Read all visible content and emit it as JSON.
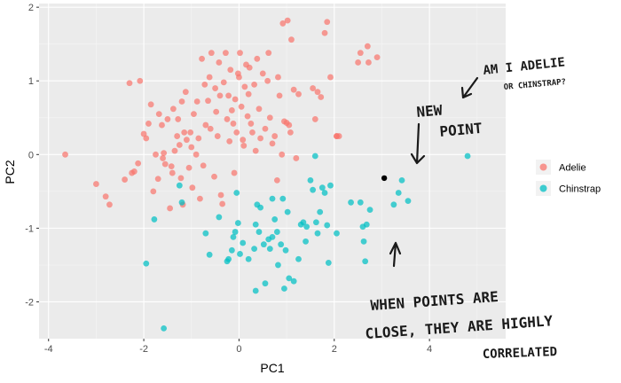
{
  "chart_data": {
    "type": "scatter",
    "xlabel": "PC1",
    "ylabel": "PC2",
    "xlim": [
      -4.2,
      5.6
    ],
    "ylim": [
      -2.5,
      2.05
    ],
    "x_ticks": [
      -4,
      -2,
      0,
      2,
      4
    ],
    "y_ticks": [
      -2,
      -1,
      0,
      1,
      2
    ],
    "grid": true,
    "legend_position": "right",
    "series": [
      {
        "name": "Adelie",
        "color": "#F8766D",
        "points": [
          [
            -3.65,
            0.0
          ],
          [
            -3.0,
            -0.4
          ],
          [
            -2.8,
            -0.57
          ],
          [
            -2.72,
            -0.68
          ],
          [
            -2.4,
            -0.34
          ],
          [
            -2.3,
            0.97
          ],
          [
            -2.25,
            -0.25
          ],
          [
            -2.2,
            -0.23
          ],
          [
            -2.12,
            -0.12
          ],
          [
            -2.08,
            1.0
          ],
          [
            -2.0,
            0.28
          ],
          [
            -1.95,
            0.22
          ],
          [
            -1.9,
            0.42
          ],
          [
            -1.85,
            0.68
          ],
          [
            -1.8,
            -0.5
          ],
          [
            -1.75,
            0.0
          ],
          [
            -1.7,
            -0.33
          ],
          [
            -1.68,
            0.55
          ],
          [
            -1.62,
            0.4
          ],
          [
            -1.6,
            -0.05
          ],
          [
            -1.58,
            0.02
          ],
          [
            -1.55,
            -0.13
          ],
          [
            -1.5,
            0.48
          ],
          [
            -1.45,
            -0.73
          ],
          [
            -1.42,
            -0.16
          ],
          [
            -1.4,
            -0.25
          ],
          [
            -1.38,
            0.62
          ],
          [
            -1.35,
            0.05
          ],
          [
            -1.3,
            0.25
          ],
          [
            -1.28,
            0.48
          ],
          [
            -1.25,
            0.13
          ],
          [
            -1.22,
            -0.32
          ],
          [
            -1.2,
            0.72
          ],
          [
            -1.18,
            -0.68
          ],
          [
            -1.15,
            0.3
          ],
          [
            -1.12,
            0.85
          ],
          [
            -1.1,
            0.2
          ],
          [
            -1.05,
            -0.18
          ],
          [
            -1.02,
            0.3
          ],
          [
            -1.0,
            0.1
          ],
          [
            -0.98,
            -0.45
          ],
          [
            -0.95,
            0.55
          ],
          [
            -0.9,
            0.0
          ],
          [
            -0.88,
            0.72
          ],
          [
            -0.85,
            0.22
          ],
          [
            -0.82,
            -0.6
          ],
          [
            -0.78,
            1.3
          ],
          [
            -0.75,
            -0.15
          ],
          [
            -0.72,
            0.95
          ],
          [
            -0.7,
            0.4
          ],
          [
            -0.65,
            0.73
          ],
          [
            -0.62,
            1.05
          ],
          [
            -0.6,
            0.35
          ],
          [
            -0.58,
            1.38
          ],
          [
            -0.52,
            -0.3
          ],
          [
            -0.5,
            0.9
          ],
          [
            -0.48,
            0.58
          ],
          [
            -0.45,
            0.25
          ],
          [
            -0.42,
            1.25
          ],
          [
            -0.4,
            0.8
          ],
          [
            -0.38,
            -0.55
          ],
          [
            -0.35,
            -0.67
          ],
          [
            -0.32,
            0.98
          ],
          [
            -0.28,
            1.38
          ],
          [
            -0.25,
            0.48
          ],
          [
            -0.22,
            0.8
          ],
          [
            -0.2,
            0.18
          ],
          [
            -0.18,
            1.15
          ],
          [
            -0.15,
            0.6
          ],
          [
            -0.12,
            0.42
          ],
          [
            -0.1,
            -0.25
          ],
          [
            -0.08,
            0.75
          ],
          [
            -0.05,
            0.3
          ],
          [
            -0.02,
            1.1
          ],
          [
            0.0,
            1.05
          ],
          [
            0.02,
            1.38
          ],
          [
            0.05,
            0.65
          ],
          [
            0.08,
            0.2
          ],
          [
            0.1,
            0.12
          ],
          [
            0.12,
            0.92
          ],
          [
            0.15,
            1.22
          ],
          [
            0.18,
            0.52
          ],
          [
            0.2,
            0.82
          ],
          [
            0.22,
            1.18
          ],
          [
            0.25,
            0.42
          ],
          [
            0.28,
            0.3
          ],
          [
            0.32,
            0.95
          ],
          [
            0.35,
            0.05
          ],
          [
            0.38,
            1.3
          ],
          [
            0.42,
            0.62
          ],
          [
            0.45,
            0.22
          ],
          [
            0.5,
            1.1
          ],
          [
            0.55,
            0.35
          ],
          [
            0.6,
            1.0
          ],
          [
            0.62,
            1.38
          ],
          [
            0.65,
            0.5
          ],
          [
            0.7,
            0.15
          ],
          [
            0.75,
            0.25
          ],
          [
            0.8,
            -0.35
          ],
          [
            0.82,
            1.05
          ],
          [
            0.85,
            0.8
          ],
          [
            0.9,
            0.0
          ],
          [
            0.92,
            1.78
          ],
          [
            0.95,
            0.45
          ],
          [
            1.0,
            0.43
          ],
          [
            1.02,
            1.82
          ],
          [
            1.05,
            0.4
          ],
          [
            1.08,
            0.3
          ],
          [
            1.1,
            1.56
          ],
          [
            1.15,
            0.88
          ],
          [
            1.2,
            -0.05
          ],
          [
            1.25,
            0.82
          ],
          [
            1.55,
            0.9
          ],
          [
            1.6,
            0.48
          ],
          [
            1.65,
            0.85
          ],
          [
            1.72,
            0.78
          ],
          [
            1.8,
            1.65
          ],
          [
            1.85,
            1.8
          ],
          [
            1.92,
            1.05
          ],
          [
            2.05,
            0.25
          ],
          [
            2.1,
            0.25
          ],
          [
            2.5,
            1.25
          ],
          [
            2.55,
            1.38
          ],
          [
            2.7,
            1.47
          ],
          [
            2.72,
            1.25
          ],
          [
            2.9,
            1.32
          ],
          [
            2.05,
            0.25
          ]
        ]
      },
      {
        "name": "Chinstrap",
        "color": "#00BFC4",
        "points": [
          [
            -1.95,
            -1.48
          ],
          [
            -1.78,
            -0.88
          ],
          [
            -1.58,
            -2.36
          ],
          [
            -1.25,
            -0.42
          ],
          [
            -1.2,
            -0.65
          ],
          [
            -0.7,
            -1.07
          ],
          [
            -0.62,
            -1.36
          ],
          [
            -0.42,
            -0.85
          ],
          [
            -0.25,
            -1.45
          ],
          [
            -0.22,
            -1.42
          ],
          [
            -0.15,
            -1.3
          ],
          [
            -0.12,
            -1.12
          ],
          [
            -0.08,
            -1.05
          ],
          [
            -0.05,
            -0.52
          ],
          [
            -0.02,
            -0.93
          ],
          [
            0.02,
            -1.35
          ],
          [
            0.08,
            -1.2
          ],
          [
            0.2,
            -1.42
          ],
          [
            0.32,
            -1.28
          ],
          [
            0.35,
            -1.85
          ],
          [
            0.38,
            -0.68
          ],
          [
            0.42,
            -1.05
          ],
          [
            0.45,
            -0.72
          ],
          [
            0.52,
            -1.22
          ],
          [
            0.55,
            -1.75
          ],
          [
            0.62,
            -1.15
          ],
          [
            0.65,
            -1.28
          ],
          [
            0.7,
            -0.6
          ],
          [
            0.75,
            -0.88
          ],
          [
            0.8,
            -1.05
          ],
          [
            0.82,
            -1.5
          ],
          [
            0.88,
            -1.22
          ],
          [
            0.92,
            -0.6
          ],
          [
            0.95,
            -1.82
          ],
          [
            0.98,
            -1.3
          ],
          [
            1.02,
            -0.78
          ],
          [
            1.05,
            -1.68
          ],
          [
            1.15,
            -1.72
          ],
          [
            1.25,
            -1.42
          ],
          [
            1.3,
            -0.95
          ],
          [
            1.35,
            -0.92
          ],
          [
            1.4,
            -1.18
          ],
          [
            1.42,
            -0.98
          ],
          [
            1.5,
            -0.35
          ],
          [
            1.55,
            -0.48
          ],
          [
            1.6,
            -0.02
          ],
          [
            1.62,
            -0.92
          ],
          [
            1.65,
            -1.07
          ],
          [
            1.7,
            -0.78
          ],
          [
            1.75,
            -0.45
          ],
          [
            1.8,
            -0.52
          ],
          [
            1.85,
            -0.96
          ],
          [
            1.88,
            -1.47
          ],
          [
            1.92,
            -0.42
          ],
          [
            2.05,
            -1.07
          ],
          [
            2.35,
            -0.65
          ],
          [
            2.55,
            -0.65
          ],
          [
            2.6,
            -0.98
          ],
          [
            2.62,
            -1.18
          ],
          [
            2.68,
            -0.95
          ],
          [
            2.65,
            -1.45
          ],
          [
            2.75,
            -0.75
          ],
          [
            3.25,
            -0.68
          ],
          [
            3.35,
            -0.52
          ],
          [
            3.42,
            -0.35
          ],
          [
            3.55,
            -0.63
          ],
          [
            4.8,
            -0.02
          ],
          [
            0.35,
            -0.95
          ],
          [
            0.7,
            -1.12
          ]
        ]
      }
    ],
    "new_point": [
      3.05,
      -0.32
    ],
    "annotations": [
      "AM I ADELIE",
      "OR CHINSTRAP?",
      "NEW",
      "POINT",
      "WHEN POINTS ARE",
      "CLOSE, THEY ARE HIGHLY",
      "CORRELATED"
    ]
  }
}
